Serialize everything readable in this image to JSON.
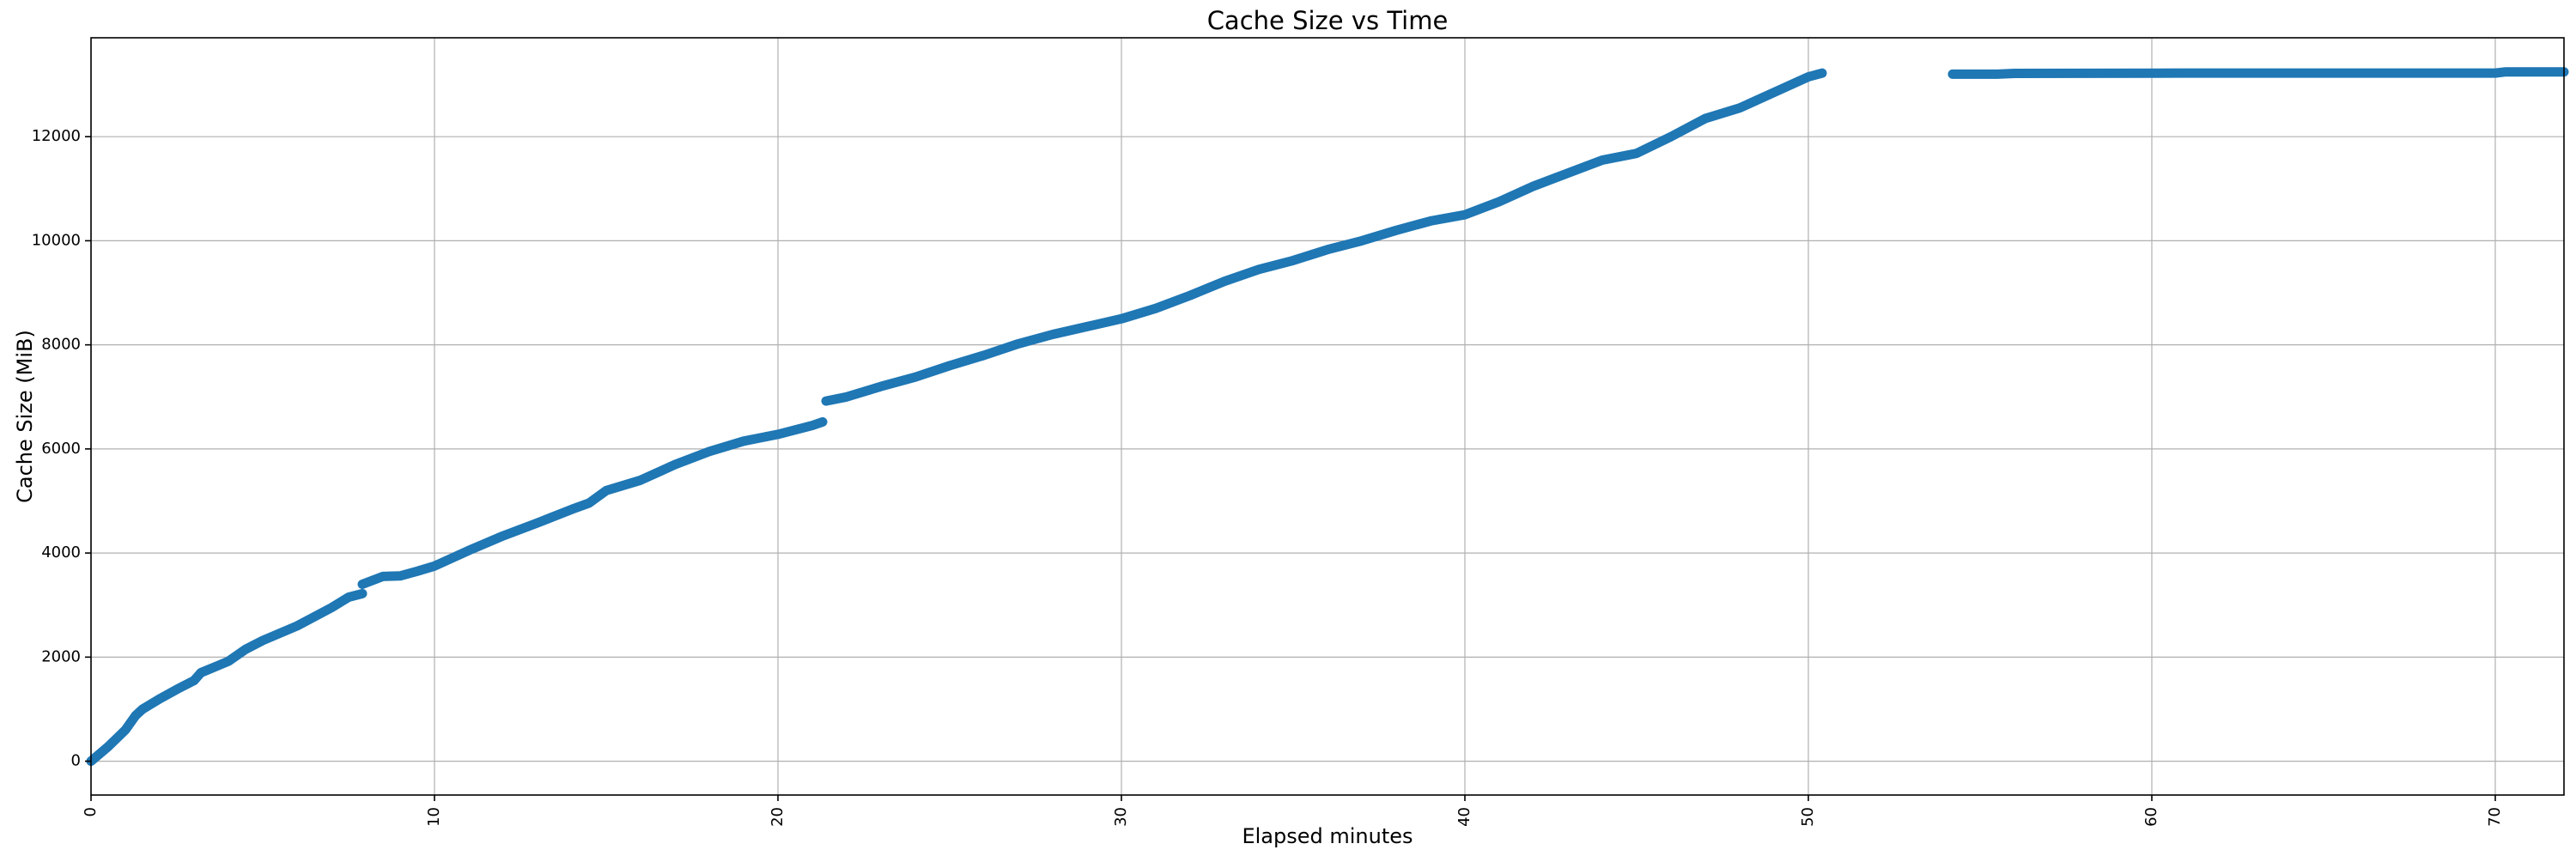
{
  "chart_data": {
    "type": "line",
    "title": "Cache Size vs Time",
    "xlabel": "Elapsed minutes",
    "ylabel": "Cache Size (MiB)",
    "xlim": [
      0,
      72
    ],
    "ylim": [
      -650,
      13900
    ],
    "xticks": [
      0,
      10,
      20,
      30,
      40,
      50,
      60,
      70
    ],
    "yticks": [
      0,
      2000,
      4000,
      6000,
      8000,
      10000,
      12000
    ],
    "x_tick_rotation": "vertical",
    "grid": true,
    "legend": "none",
    "color": "#1f77b4",
    "segments": [
      {
        "x": [
          0,
          0.5,
          1.0,
          1.3,
          1.5,
          2.0,
          2.5,
          3.0,
          3.2,
          4.0,
          4.5,
          5.0,
          6.0,
          7.0,
          7.5,
          7.9
        ],
        "y": [
          0,
          280,
          600,
          880,
          1000,
          1200,
          1380,
          1550,
          1700,
          1920,
          2150,
          2320,
          2600,
          2950,
          3150,
          3220
        ]
      },
      {
        "x": [
          7.9,
          8.5,
          9.0,
          9.5,
          10.0,
          11.0,
          12.0,
          13.0,
          14.0,
          14.5,
          15.0,
          16.0,
          17.0,
          18.0,
          19.0,
          20.0,
          21.0,
          21.3
        ],
        "y": [
          3400,
          3550,
          3560,
          3650,
          3750,
          4050,
          4330,
          4580,
          4840,
          4960,
          5200,
          5400,
          5700,
          5950,
          6150,
          6280,
          6450,
          6520
        ]
      },
      {
        "x": [
          21.4,
          22.0,
          23.0,
          24.0,
          25.0,
          26.0,
          27.0,
          28.0,
          29.0,
          30.0,
          31.0,
          32.0,
          33.0,
          34.0,
          35.0,
          36.0,
          37.0,
          38.0,
          39.0,
          40.0,
          41.0,
          42.0,
          43.0,
          44.0,
          45.0,
          46.0,
          47.0,
          48.0,
          49.0,
          50.0,
          50.4
        ],
        "y": [
          6920,
          7000,
          7200,
          7380,
          7600,
          7800,
          8020,
          8200,
          8350,
          8500,
          8700,
          8950,
          9220,
          9450,
          9620,
          9830,
          10000,
          10200,
          10380,
          10500,
          10750,
          11050,
          11300,
          11550,
          11680,
          12000,
          12350,
          12550,
          12850,
          13150,
          13220
        ]
      },
      {
        "x": [
          54.2,
          55.5,
          56.0,
          60.0,
          65.0,
          70.0,
          70.3,
          72.0
        ],
        "y": [
          13200,
          13200,
          13215,
          13220,
          13222,
          13222,
          13245,
          13245
        ]
      }
    ]
  }
}
